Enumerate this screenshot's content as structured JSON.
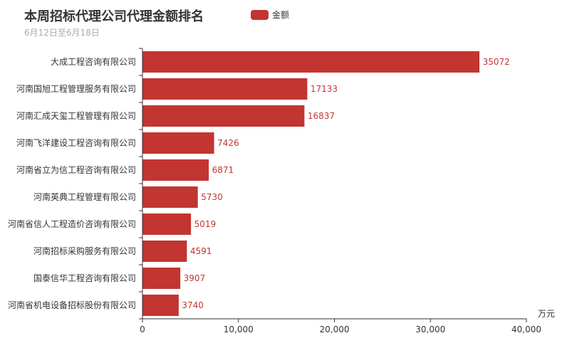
{
  "chart_data": {
    "type": "bar",
    "orientation": "horizontal",
    "title": "本周招标代理公司代理金额排名",
    "subtitle": "6月12日至6月18日",
    "legend": [
      "金额"
    ],
    "legend_position": "top-center",
    "categories": [
      "大成工程咨询有限公司",
      "河南国旭工程管理服务有限公司",
      "河南汇成天玺工程管理有限公司",
      "河南飞洋建设工程咨询有限公司",
      "河南省立为信工程咨询有限公司",
      "河南英典工程管理有限公司",
      "河南省信人工程造价咨询有限公司",
      "河南招标采购服务有限公司",
      "国泰信华工程咨询有限公司",
      "河南省机电设备招标股份有限公司"
    ],
    "series": [
      {
        "name": "金额",
        "values": [
          35072,
          17133,
          16837,
          7426,
          6871,
          5730,
          5019,
          4591,
          3907,
          3740
        ],
        "color": "#c23531"
      }
    ],
    "xlabel": "万元",
    "xlim": [
      0,
      40000
    ],
    "xticks": [
      "0",
      "10,000",
      "20,000",
      "30,000",
      "40,000"
    ],
    "grid": false
  }
}
